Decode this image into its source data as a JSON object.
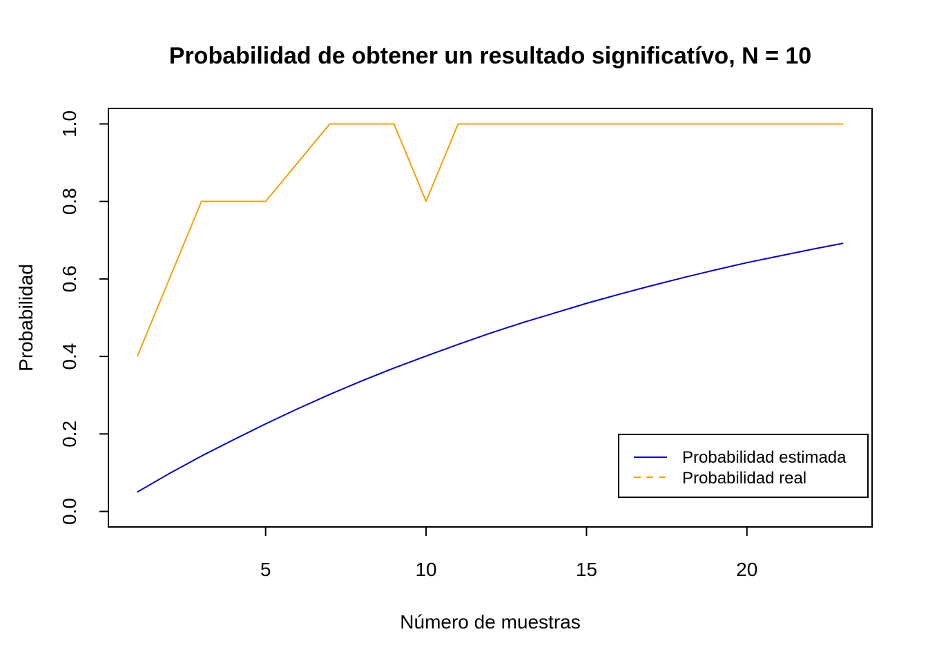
{
  "chart_data": {
    "type": "line",
    "title": "Probabilidad de obtener un resultado significatívo, N =  10",
    "xlabel": "Número de muestras",
    "ylabel": "Probabilidad",
    "xlim": [
      0.1,
      23.9
    ],
    "ylim": [
      -0.04,
      1.04
    ],
    "x_ticks": [
      5,
      10,
      15,
      20
    ],
    "x_tick_labels": [
      "5",
      "10",
      "15",
      "20"
    ],
    "y_ticks": [
      0.0,
      0.2,
      0.4,
      0.6,
      0.8,
      1.0
    ],
    "y_tick_labels": [
      "0.0",
      "0.2",
      "0.4",
      "0.6",
      "0.8",
      "1.0"
    ],
    "grid": false,
    "legend_position": "bottom-right",
    "x": [
      1,
      2,
      3,
      4,
      5,
      6,
      7,
      8,
      9,
      10,
      11,
      12,
      13,
      14,
      15,
      16,
      17,
      18,
      19,
      20,
      21,
      22,
      23
    ],
    "series": [
      {
        "name": "Probabilidad estimada",
        "color": "#0000CD",
        "dash": "solid",
        "values": [
          0.05,
          0.098,
          0.143,
          0.185,
          0.226,
          0.265,
          0.302,
          0.337,
          0.37,
          0.401,
          0.431,
          0.46,
          0.487,
          0.512,
          0.537,
          0.56,
          0.582,
          0.603,
          0.623,
          0.642,
          0.659,
          0.676,
          0.692
        ]
      },
      {
        "name": "Probabilidad real",
        "color": "#F5A000",
        "dash": "dashed",
        "values": [
          0.4,
          0.6,
          0.8,
          0.8,
          0.8,
          0.9,
          1.0,
          1.0,
          1.0,
          0.8,
          1.0,
          1.0,
          1.0,
          1.0,
          1.0,
          1.0,
          1.0,
          1.0,
          1.0,
          1.0,
          1.0,
          1.0,
          1.0
        ]
      }
    ]
  }
}
